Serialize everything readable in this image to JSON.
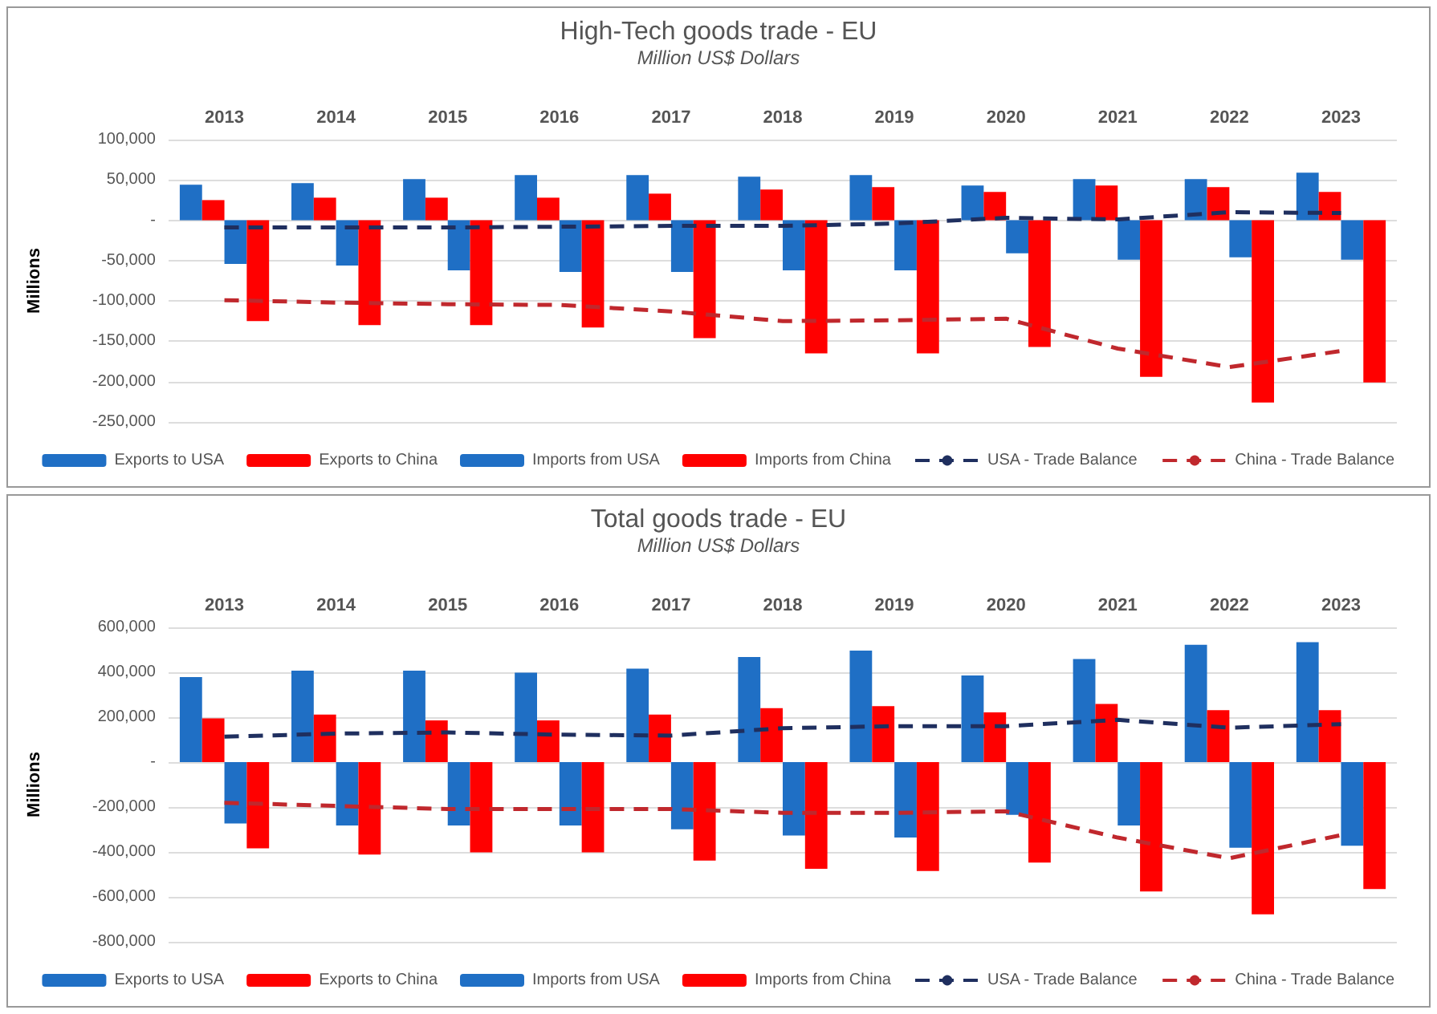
{
  "chart_data": [
    {
      "type": "bar",
      "title": "High-Tech goods trade - EU",
      "subtitle": "Million US$ Dollars",
      "ylabel": "Millions",
      "categories": [
        "2013",
        "2014",
        "2015",
        "2016",
        "2017",
        "2018",
        "2019",
        "2020",
        "2021",
        "2022",
        "2023"
      ],
      "ylim": [
        -250000,
        100000
      ],
      "yticks": [
        {
          "value": -250000,
          "label": "-250,000"
        },
        {
          "value": -200000,
          "label": "-200,000"
        },
        {
          "value": -150000,
          "label": "-150,000"
        },
        {
          "value": -100000,
          "label": "-100,000"
        },
        {
          "value": -50000,
          "label": "-50,000"
        },
        {
          "value": 0,
          "label": "-"
        },
        {
          "value": 50000,
          "label": "50,000"
        },
        {
          "value": 100000,
          "label": "100,000"
        }
      ],
      "grid": "y",
      "legend": "bottom",
      "series": [
        {
          "name": "Exports to USA",
          "color": "#1f6fc5",
          "values": [
            44000,
            46000,
            51000,
            56000,
            56000,
            54000,
            56000,
            43000,
            51000,
            51000,
            59000
          ]
        },
        {
          "name": "Exports to China",
          "color": "#ff0000",
          "values": [
            25000,
            28000,
            28000,
            28000,
            33000,
            38000,
            41000,
            35000,
            43000,
            41000,
            35000
          ]
        },
        {
          "name": "Imports from USA",
          "color": "#1f6fc5",
          "values": [
            -54000,
            -56000,
            -62000,
            -64000,
            -64000,
            -62000,
            -62000,
            -41000,
            -49000,
            -46000,
            -49000
          ]
        },
        {
          "name": "Imports from China",
          "color": "#ff0000",
          "values": [
            -125000,
            -130000,
            -130000,
            -133000,
            -146000,
            -165000,
            -165000,
            -157000,
            -194000,
            -226000,
            -201000
          ]
        },
        {
          "name": "USA - Trade Balance",
          "type": "line",
          "color": "#1f2f5f",
          "line_style": "dashed",
          "marker": "none",
          "values": [
            -9000,
            -9000,
            -9000,
            -8000,
            -7000,
            -7000,
            -4000,
            3000,
            1000,
            10000,
            9000
          ]
        },
        {
          "name": "China - Trade Balance",
          "type": "line",
          "color": "#c0282d",
          "line_style": "dashed",
          "marker": "none",
          "values": [
            -99000,
            -102000,
            -104000,
            -105000,
            -113000,
            -125000,
            -124000,
            -122000,
            -159000,
            -182000,
            -162000
          ]
        }
      ]
    },
    {
      "type": "bar",
      "title": "Total goods trade - EU",
      "subtitle": "Million US$ Dollars",
      "ylabel": "Millions",
      "categories": [
        "2013",
        "2014",
        "2015",
        "2016",
        "2017",
        "2018",
        "2019",
        "2020",
        "2021",
        "2022",
        "2023"
      ],
      "ylim": [
        -800000,
        600000
      ],
      "yticks": [
        {
          "value": -800000,
          "label": "-800,000"
        },
        {
          "value": -600000,
          "label": "-600,000"
        },
        {
          "value": -400000,
          "label": "-400,000"
        },
        {
          "value": -200000,
          "label": "-200,000"
        },
        {
          "value": 0,
          "label": "-"
        },
        {
          "value": 200000,
          "label": "200,000"
        },
        {
          "value": 400000,
          "label": "400,000"
        },
        {
          "value": 600000,
          "label": "600,000"
        }
      ],
      "grid": "y",
      "legend": "bottom",
      "series": [
        {
          "name": "Exports to USA",
          "color": "#1f6fc5",
          "values": [
            379000,
            407000,
            407000,
            398000,
            416000,
            468000,
            496000,
            386000,
            459000,
            522000,
            534000
          ]
        },
        {
          "name": "Exports to China",
          "color": "#ff0000",
          "values": [
            195000,
            212000,
            186000,
            186000,
            212000,
            240000,
            249000,
            221000,
            259000,
            231000,
            231000
          ]
        },
        {
          "name": "Imports from USA",
          "color": "#1f6fc5",
          "values": [
            -273000,
            -282000,
            -282000,
            -282000,
            -299000,
            -327000,
            -336000,
            -235000,
            -282000,
            -381000,
            -372000
          ]
        },
        {
          "name": "Imports from China",
          "color": "#ff0000",
          "values": [
            -384000,
            -412000,
            -402000,
            -402000,
            -438000,
            -475000,
            -485000,
            -447000,
            -576000,
            -678000,
            -565000
          ]
        },
        {
          "name": "USA - Trade Balance",
          "type": "line",
          "color": "#1f2f5f",
          "line_style": "dashed",
          "marker": "none",
          "values": [
            113000,
            127000,
            132000,
            122000,
            118000,
            151000,
            160000,
            160000,
            188000,
            153000,
            169000
          ]
        },
        {
          "name": "China - Trade Balance",
          "type": "line",
          "color": "#c0282d",
          "line_style": "dashed",
          "marker": "none",
          "values": [
            -181000,
            -195000,
            -209000,
            -209000,
            -209000,
            -226000,
            -226000,
            -219000,
            -336000,
            -428000,
            -325000
          ]
        }
      ]
    }
  ]
}
